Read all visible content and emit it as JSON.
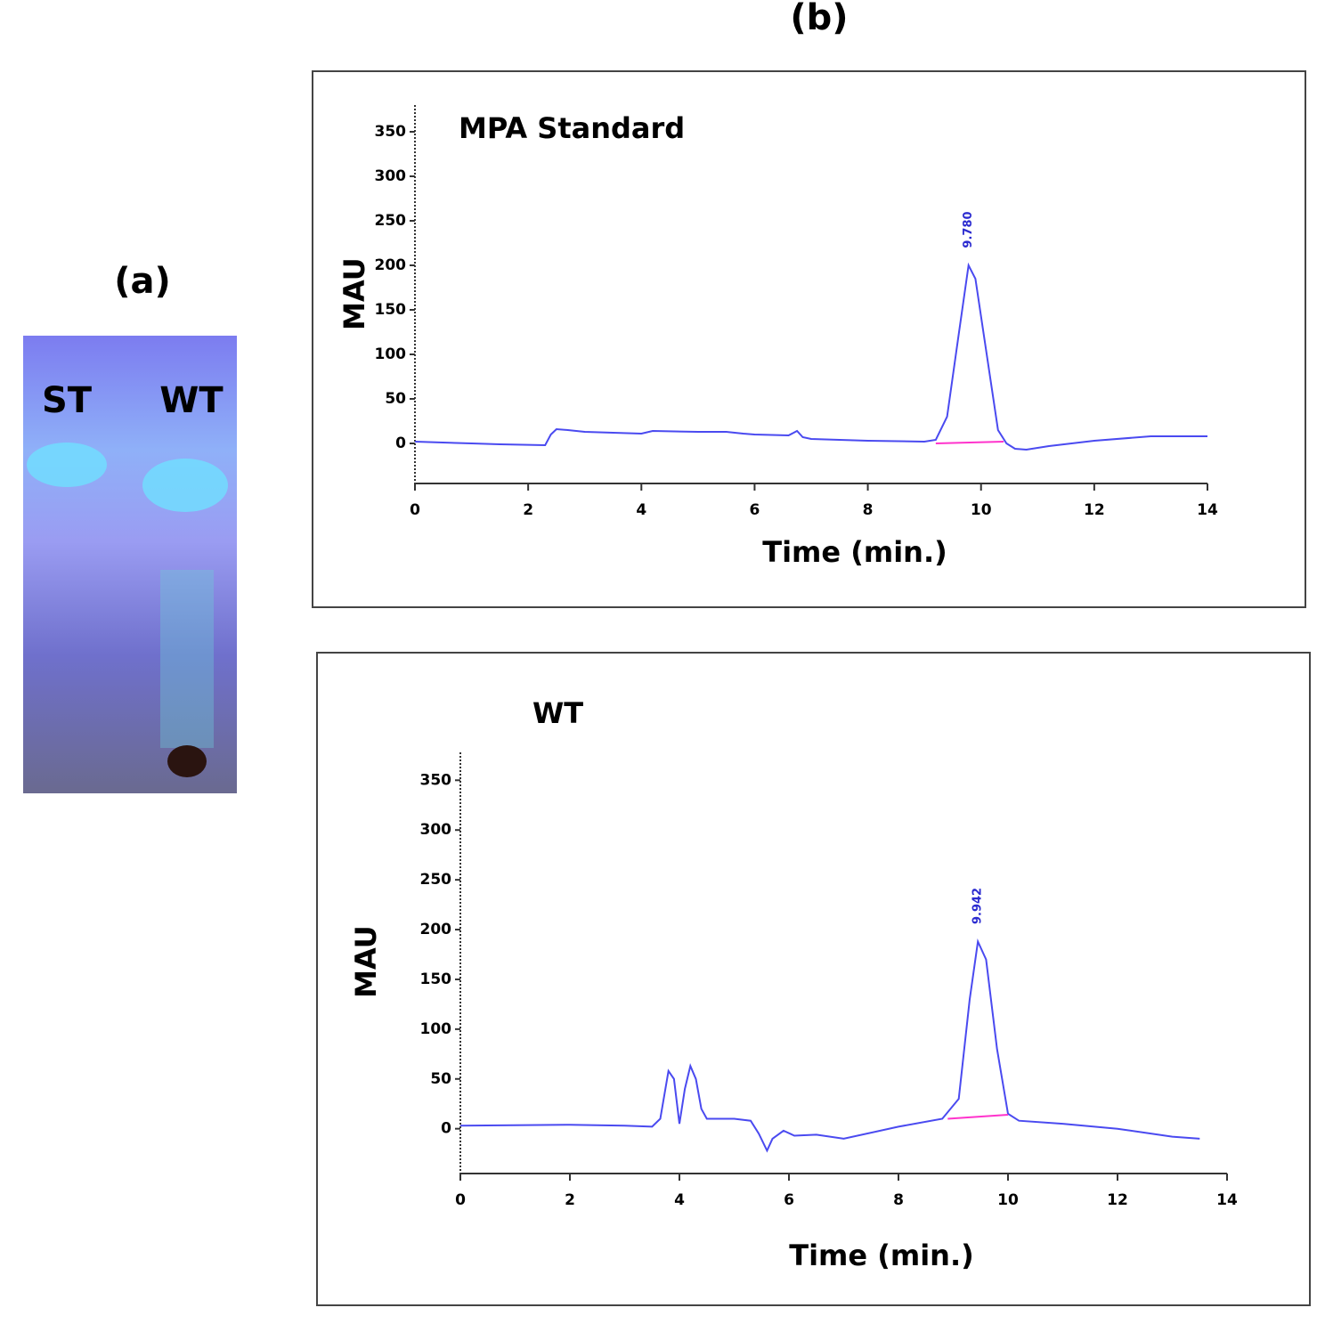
{
  "panels": {
    "a": "(a)",
    "b": "(b)"
  },
  "tlc": {
    "lanes": [
      "ST",
      "WT"
    ]
  },
  "chart_data": [
    {
      "type": "line",
      "title": "MPA Standard",
      "x_label": "Time (min.)",
      "y_label": "MAU",
      "xlim": [
        0,
        14
      ],
      "ylim": [
        -45,
        380
      ],
      "xticks": [
        0,
        2,
        4,
        6,
        8,
        10,
        12,
        14
      ],
      "yticks": [
        0,
        50,
        100,
        150,
        200,
        250,
        300,
        350
      ],
      "annotations": [
        "9.780"
      ],
      "series": [
        {
          "color": "#4a4af0",
          "x": [
            0,
            1,
            1.5,
            2.3,
            2.4,
            2.5,
            2.7,
            3,
            3.5,
            4,
            4.2,
            5,
            5.5,
            5.8,
            6,
            6.6,
            6.75,
            6.85,
            7,
            8,
            9,
            9.2,
            9.4,
            9.6,
            9.78,
            9.9,
            10.1,
            10.3,
            10.45,
            10.6,
            10.8,
            11.2,
            12,
            13,
            14
          ],
          "values": [
            2,
            0,
            -1,
            -2,
            10,
            16,
            15,
            13,
            12,
            11,
            14,
            13,
            13,
            11,
            10,
            9,
            14,
            7,
            5,
            3,
            2,
            4,
            30,
            120,
            200,
            185,
            100,
            15,
            0,
            -6,
            -7,
            -3,
            3,
            8,
            8
          ]
        },
        {
          "color": "#ff33cc",
          "x": [
            9.2,
            10.4
          ],
          "values": [
            0,
            2
          ]
        }
      ]
    },
    {
      "type": "line",
      "title": "WT",
      "x_label": "Time (min.)",
      "y_label": "MAU",
      "xlim": [
        0,
        14
      ],
      "ylim": [
        -45,
        378
      ],
      "xticks": [
        0,
        2,
        4,
        6,
        8,
        10,
        12,
        14
      ],
      "yticks": [
        0,
        50,
        100,
        150,
        200,
        250,
        300,
        350
      ],
      "annotations": [
        "9.942"
      ],
      "series": [
        {
          "color": "#4a4af0",
          "x": [
            0,
            2,
            3,
            3.5,
            3.65,
            3.8,
            3.9,
            4.0,
            4.1,
            4.2,
            4.3,
            4.4,
            4.5,
            5,
            5.3,
            5.45,
            5.6,
            5.7,
            5.9,
            6.1,
            6.5,
            7,
            8,
            8.8,
            9.1,
            9.3,
            9.45,
            9.6,
            9.8,
            10.0,
            10.2,
            11,
            12,
            13,
            13.5
          ],
          "values": [
            3,
            4,
            3,
            2,
            10,
            58,
            50,
            5,
            40,
            63,
            50,
            20,
            10,
            10,
            8,
            -5,
            -22,
            -10,
            -2,
            -7,
            -6,
            -10,
            2,
            10,
            30,
            130,
            188,
            170,
            80,
            15,
            8,
            5,
            0,
            -8,
            -10
          ]
        },
        {
          "color": "#ff33cc",
          "x": [
            8.9,
            10
          ],
          "values": [
            10,
            14
          ]
        }
      ]
    }
  ]
}
